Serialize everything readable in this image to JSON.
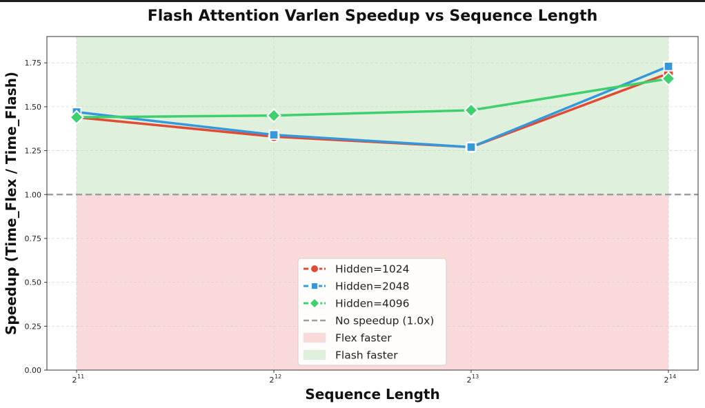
{
  "chart_data": {
    "type": "line",
    "title": "Flash Attention Varlen Speedup vs Sequence Length",
    "xlabel": "Sequence Length",
    "ylabel": "Speedup (Time_Flex / Time_Flash)",
    "x_scale": "log2",
    "x": [
      2048,
      4096,
      8192,
      16384
    ],
    "x_tick_labels": [
      {
        "base": "2",
        "exp": "11"
      },
      {
        "base": "2",
        "exp": "12"
      },
      {
        "base": "2",
        "exp": "13"
      },
      {
        "base": "2",
        "exp": "14"
      }
    ],
    "ylim": [
      0,
      1.9
    ],
    "y_ticks": [
      0.0,
      0.25,
      0.5,
      0.75,
      1.0,
      1.25,
      1.5,
      1.75
    ],
    "y_tick_labels": [
      "0.00",
      "0.25",
      "0.50",
      "0.75",
      "1.00",
      "1.25",
      "1.50",
      "1.75"
    ],
    "grid": true,
    "series": [
      {
        "name": "Hidden=1024",
        "color": "#e24a33",
        "marker": "circle",
        "values": [
          1.44,
          1.33,
          1.27,
          1.69
        ]
      },
      {
        "name": "Hidden=2048",
        "color": "#3498db",
        "marker": "square",
        "values": [
          1.47,
          1.34,
          1.27,
          1.73
        ]
      },
      {
        "name": "Hidden=4096",
        "color": "#3ecf6e",
        "marker": "diamond",
        "values": [
          1.44,
          1.45,
          1.48,
          1.66
        ]
      }
    ],
    "reference_line": {
      "name": "No speedup (1.0x)",
      "y": 1.0,
      "color": "#9e9e9e",
      "style": "dashed"
    },
    "regions": [
      {
        "name": "Flex faster",
        "y_from": 0.0,
        "y_to": 1.0,
        "color": "#f9d9d9"
      },
      {
        "name": "Flash faster",
        "y_from": 1.0,
        "y_to": 1.9,
        "color": "#dff0dc"
      }
    ],
    "legend_position": "lower-center"
  }
}
